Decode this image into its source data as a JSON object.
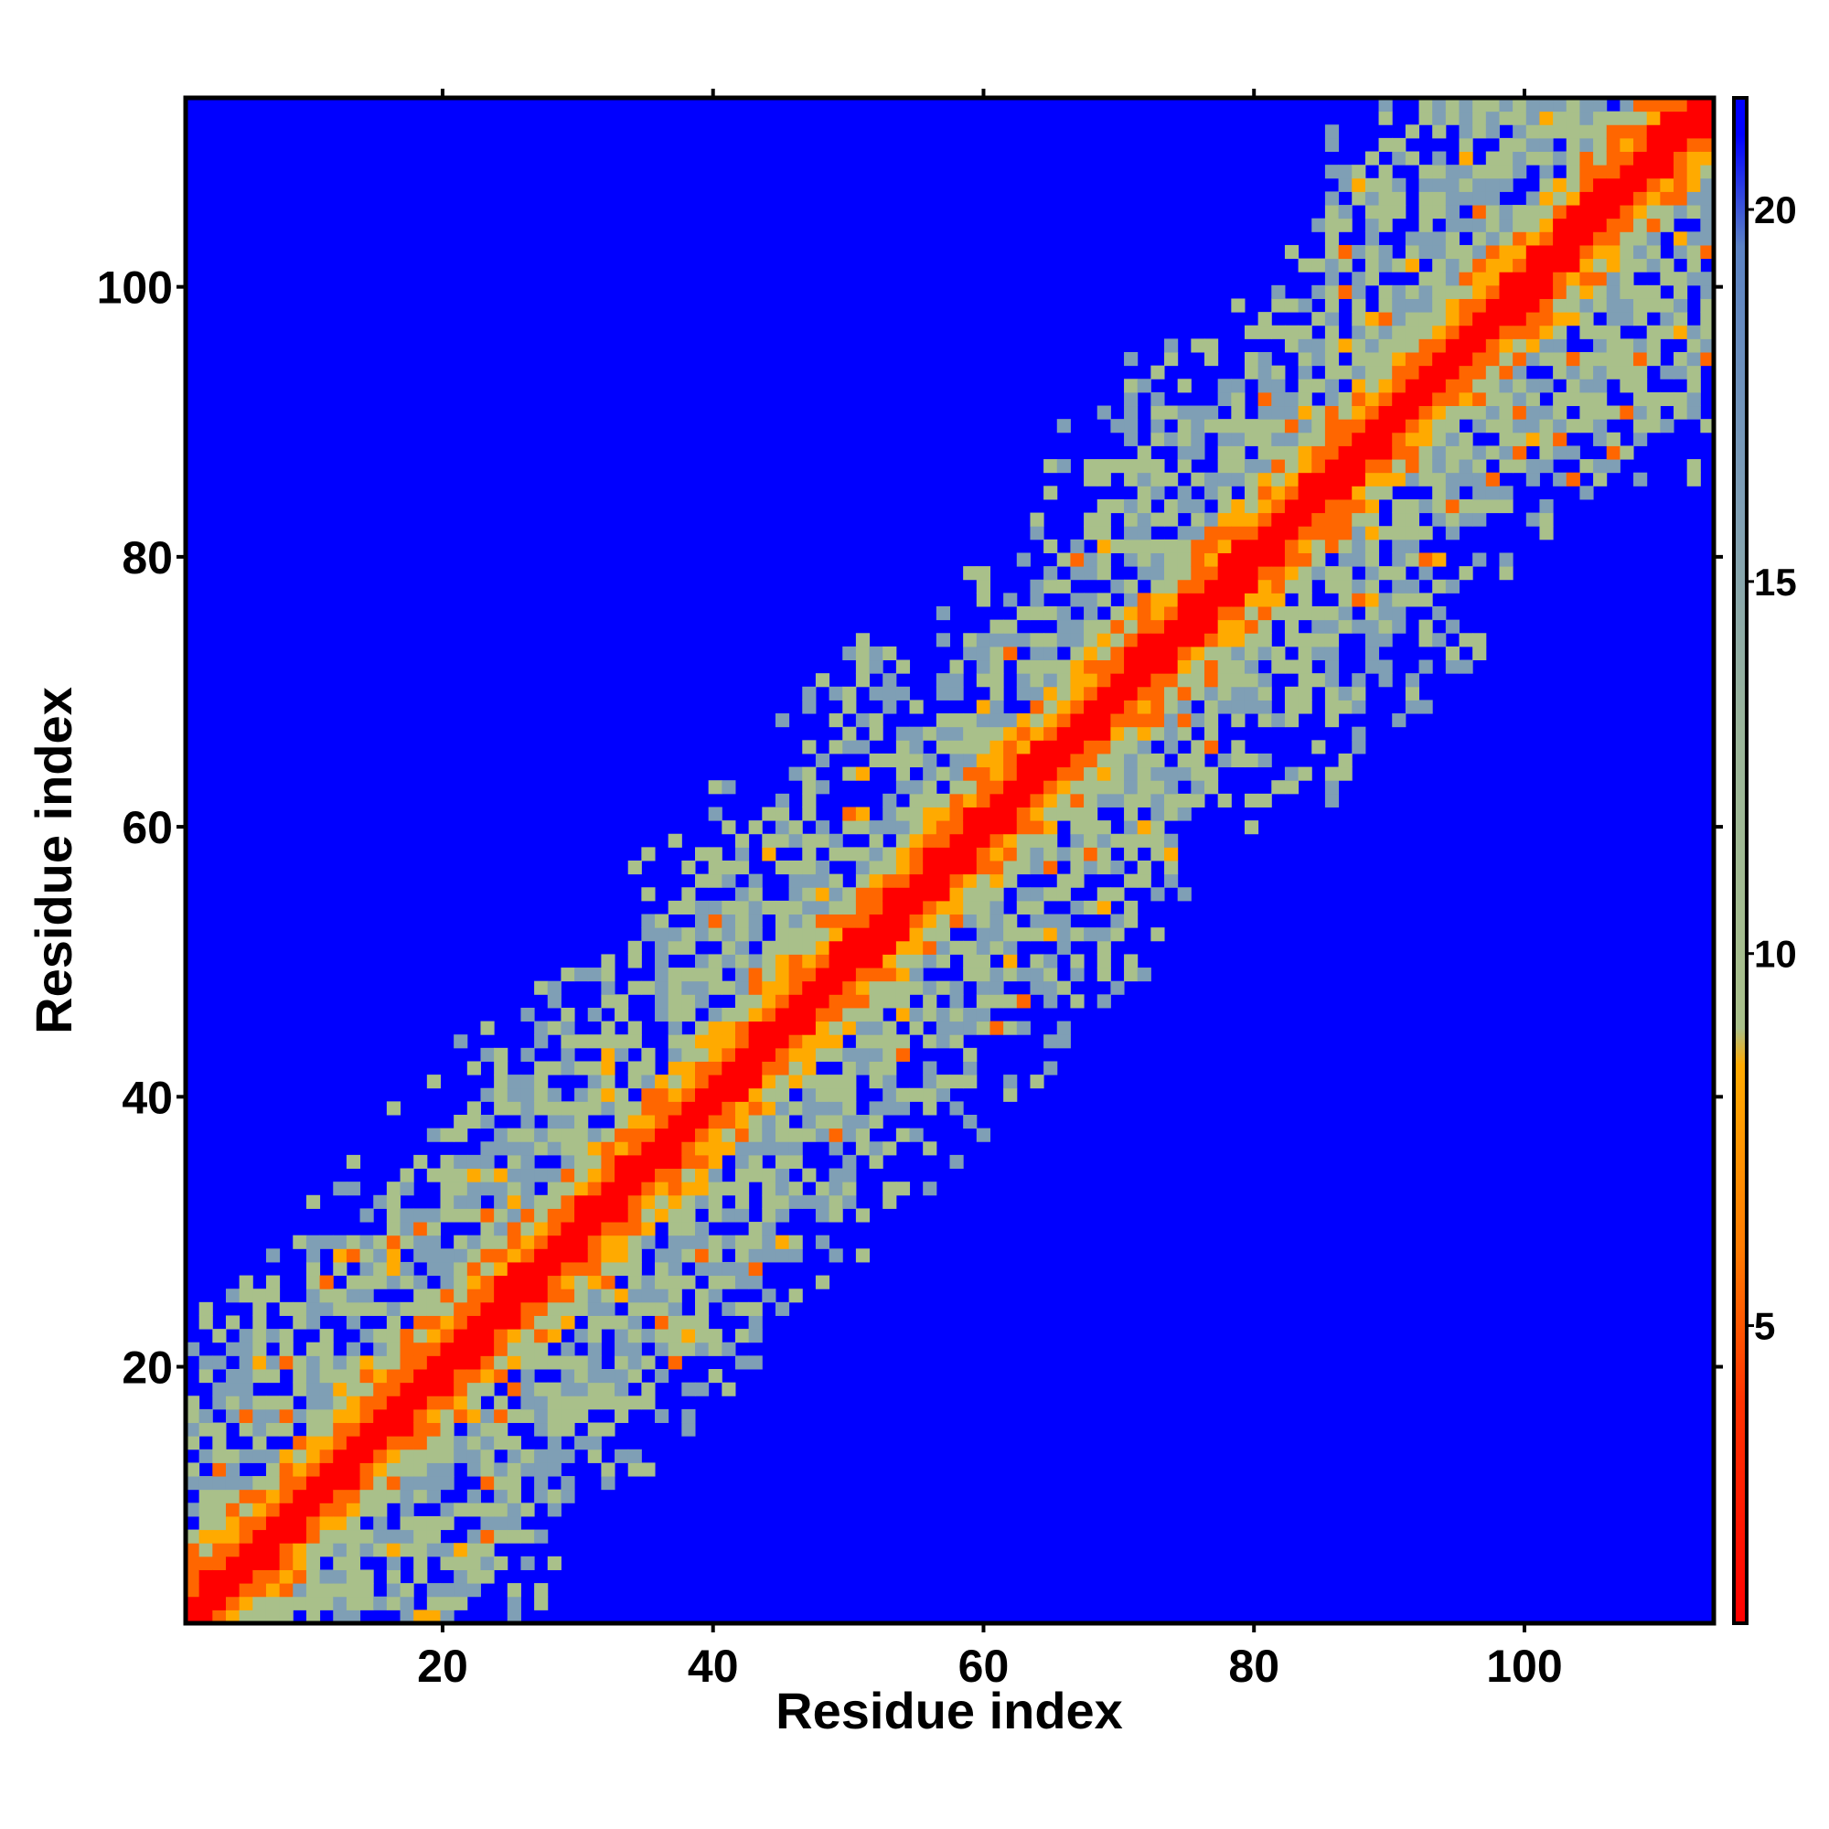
{
  "chart_data": {
    "type": "heatmap",
    "description_of_values": "pairwise residue distance map; small values along the diagonal",
    "xlabel": "Residue index",
    "ylabel": "Residue index",
    "xlim": [
      1,
      114
    ],
    "ylim": [
      1,
      114
    ],
    "x_ticks": [
      20,
      40,
      60,
      80,
      100
    ],
    "y_ticks": [
      20,
      40,
      60,
      80,
      100
    ],
    "x_tick_labels": [
      "20",
      "40",
      "60",
      "80",
      "100"
    ],
    "y_tick_labels": [
      "20",
      "40",
      "60",
      "80",
      "100"
    ],
    "n_residues": 114,
    "colorbar": {
      "range": [
        1,
        21.5
      ],
      "ticks": [
        5,
        10,
        15,
        20
      ],
      "tick_labels": [
        "5",
        "10",
        "15",
        "20"
      ],
      "colors": [
        {
          "value": 1,
          "color": "#ff0000"
        },
        {
          "value": 4,
          "color": "#ff3300"
        },
        {
          "value": 6,
          "color": "#ff7a00"
        },
        {
          "value": 8.5,
          "color": "#ffaa00"
        },
        {
          "value": 9,
          "color": "#a9c08a"
        },
        {
          "value": 13,
          "color": "#9ab59a"
        },
        {
          "value": 16,
          "color": "#7f9fb5"
        },
        {
          "value": 19.5,
          "color": "#5b82c4"
        },
        {
          "value": 21,
          "color": "#0000ff"
        }
      ]
    },
    "background_color": "#0000ff",
    "diagonal_color": "#ff0000",
    "contact_colors": {
      "close": "#ff0000",
      "near": "#ff6600",
      "mid": "#ffaa00",
      "medium": "#a9c08a",
      "far": "#7f9fb5",
      "none": "#0000ff"
    }
  }
}
